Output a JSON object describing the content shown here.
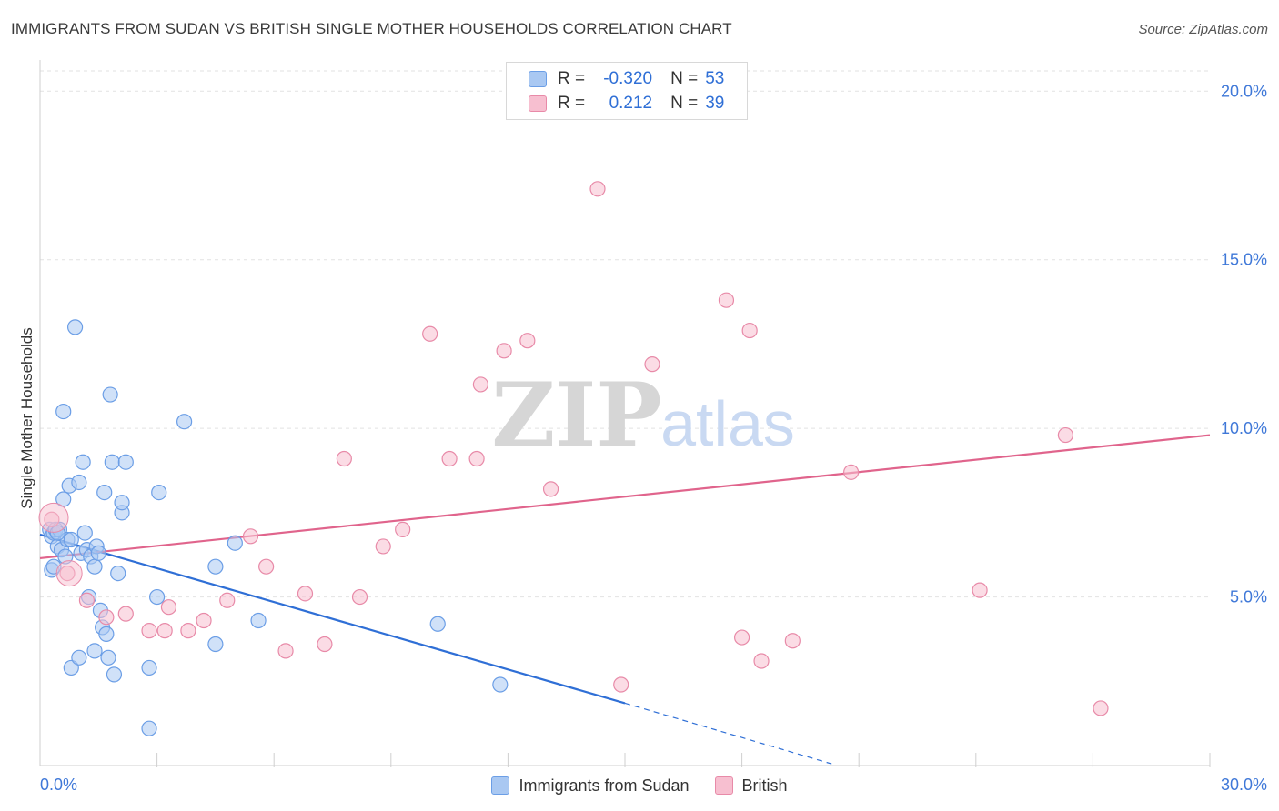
{
  "title": "IMMIGRANTS FROM SUDAN VS BRITISH SINGLE MOTHER HOUSEHOLDS CORRELATION CHART",
  "source": "Source: ZipAtlas.com",
  "watermark": {
    "zip": "ZIP",
    "atlas": "atlas"
  },
  "legend_top": {
    "rows": [
      {
        "r_label": "R =",
        "r_value": "-0.320",
        "n_label": "N =",
        "n_value": "53",
        "color": "#a9c8f2",
        "stroke": "#6b9ee6"
      },
      {
        "r_label": "R =",
        "r_value": "0.212",
        "n_label": "N =",
        "n_value": "39",
        "color": "#f7bfd0",
        "stroke": "#e88aa8"
      }
    ]
  },
  "legend_bottom": [
    {
      "label": "Immigrants from Sudan",
      "color": "#a9c8f2",
      "stroke": "#6b9ee6"
    },
    {
      "label": "British",
      "color": "#f7bfd0",
      "stroke": "#e88aa8"
    }
  ],
  "chart_data": {
    "type": "scatter",
    "xlabel": "",
    "ylabel": "Single Mother Households",
    "xlim": [
      0,
      30
    ],
    "ylim": [
      0,
      20.6
    ],
    "x_tick_labels": [
      "0.0%",
      "30.0%"
    ],
    "y_ticks": [
      5,
      10,
      15,
      20
    ],
    "y_tick_labels": [
      "5.0%",
      "10.0%",
      "15.0%",
      "20.0%"
    ],
    "grid": "horizontal dashed",
    "legend_position": "top-center and bottom",
    "series": [
      {
        "name": "Immigrants from Sudan",
        "color": "#6b9ee6",
        "fill": "#a9c8f2",
        "line_color": "#2f6fd6",
        "trend": {
          "x0": 0,
          "y0": 6.85,
          "x1": 15.0,
          "y1": 1.85,
          "dash_to_x": 20.3,
          "dash_to_y": 0.05
        },
        "points": [
          [
            0.25,
            7.0
          ],
          [
            0.3,
            6.8
          ],
          [
            0.35,
            6.9
          ],
          [
            0.4,
            7.0
          ],
          [
            0.45,
            6.5
          ],
          [
            0.5,
            7.0
          ],
          [
            0.55,
            6.4
          ],
          [
            0.6,
            10.5
          ],
          [
            0.6,
            7.9
          ],
          [
            0.65,
            6.2
          ],
          [
            0.7,
            6.7
          ],
          [
            0.75,
            8.3
          ],
          [
            0.8,
            6.7
          ],
          [
            0.8,
            2.9
          ],
          [
            0.9,
            13.0
          ],
          [
            1.0,
            8.4
          ],
          [
            1.0,
            3.2
          ],
          [
            1.05,
            6.3
          ],
          [
            1.1,
            9.0
          ],
          [
            1.15,
            6.9
          ],
          [
            1.2,
            6.4
          ],
          [
            1.25,
            5.0
          ],
          [
            1.3,
            6.2
          ],
          [
            1.4,
            3.4
          ],
          [
            1.4,
            5.9
          ],
          [
            1.45,
            6.5
          ],
          [
            1.5,
            6.3
          ],
          [
            1.55,
            4.6
          ],
          [
            1.6,
            4.1
          ],
          [
            1.65,
            8.1
          ],
          [
            1.7,
            3.9
          ],
          [
            1.75,
            3.2
          ],
          [
            1.8,
            11.0
          ],
          [
            1.85,
            9.0
          ],
          [
            1.9,
            2.7
          ],
          [
            2.0,
            5.7
          ],
          [
            2.1,
            7.5
          ],
          [
            2.1,
            7.8
          ],
          [
            2.2,
            9.0
          ],
          [
            2.8,
            1.1
          ],
          [
            2.8,
            2.9
          ],
          [
            3.0,
            5.0
          ],
          [
            3.05,
            8.1
          ],
          [
            3.7,
            10.2
          ],
          [
            4.5,
            5.9
          ],
          [
            4.5,
            3.6
          ],
          [
            5.0,
            6.6
          ],
          [
            5.6,
            4.3
          ],
          [
            10.2,
            4.2
          ],
          [
            11.8,
            2.4
          ],
          [
            0.3,
            5.8
          ],
          [
            0.35,
            5.9
          ],
          [
            0.45,
            6.9
          ]
        ]
      },
      {
        "name": "British",
        "color": "#e88aa8",
        "fill": "#f7bfd0",
        "line_color": "#e0648c",
        "trend": {
          "x0": 0,
          "y0": 6.15,
          "x1": 30,
          "y1": 9.8
        },
        "points": [
          [
            0.3,
            7.3
          ],
          [
            0.7,
            5.7
          ],
          [
            1.2,
            4.9
          ],
          [
            1.7,
            4.4
          ],
          [
            2.2,
            4.5
          ],
          [
            2.8,
            4.0
          ],
          [
            3.3,
            4.7
          ],
          [
            3.8,
            4.0
          ],
          [
            4.2,
            4.3
          ],
          [
            4.8,
            4.9
          ],
          [
            5.4,
            6.8
          ],
          [
            5.8,
            5.9
          ],
          [
            6.3,
            3.4
          ],
          [
            6.8,
            5.1
          ],
          [
            7.3,
            3.6
          ],
          [
            7.8,
            9.1
          ],
          [
            8.2,
            5.0
          ],
          [
            8.8,
            6.5
          ],
          [
            9.3,
            7.0
          ],
          [
            10.0,
            12.8
          ],
          [
            10.5,
            9.1
          ],
          [
            11.2,
            9.1
          ],
          [
            11.3,
            11.3
          ],
          [
            11.9,
            12.3
          ],
          [
            12.5,
            12.6
          ],
          [
            13.1,
            8.2
          ],
          [
            14.3,
            17.1
          ],
          [
            14.9,
            2.4
          ],
          [
            15.7,
            11.9
          ],
          [
            17.6,
            13.8
          ],
          [
            18.0,
            3.8
          ],
          [
            18.2,
            12.9
          ],
          [
            18.5,
            3.1
          ],
          [
            19.3,
            3.7
          ],
          [
            20.8,
            8.7
          ],
          [
            24.1,
            5.2
          ],
          [
            26.3,
            9.8
          ],
          [
            27.2,
            1.7
          ],
          [
            3.2,
            4.0
          ]
        ]
      }
    ]
  }
}
